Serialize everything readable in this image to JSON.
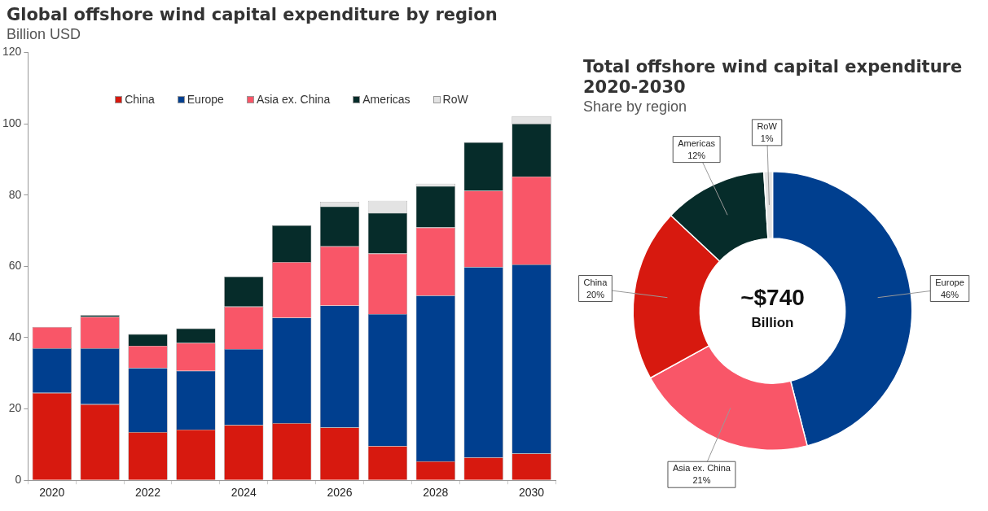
{
  "chart_data": [
    {
      "type": "bar",
      "title": "Global offshore wind capital expenditure by region",
      "subtitle": "Billion USD",
      "stacked": true,
      "legend": "top",
      "grid": false,
      "categories": [
        "2020",
        null,
        "2022",
        null,
        "2024",
        null,
        "2026",
        null,
        "2028",
        null,
        "2030"
      ],
      "ylim": [
        0,
        120
      ],
      "yticks": [
        0,
        20,
        40,
        60,
        80,
        100,
        120
      ],
      "series": [
        {
          "name": "China",
          "color": "#d7190f",
          "values": [
            24.5,
            21.3,
            13.5,
            14.2,
            15.5,
            16,
            14.8,
            9.6,
            5.3,
            6.4,
            7.5
          ]
        },
        {
          "name": "Europe",
          "color": "#003f8f",
          "values": [
            12.5,
            15.7,
            18,
            16.5,
            21.3,
            29.6,
            34.2,
            37,
            46.5,
            53.4,
            53
          ]
        },
        {
          "name": "Asia ex. China",
          "color": "#f95668",
          "values": [
            6,
            8.8,
            6.2,
            7.8,
            11.9,
            15.6,
            16.6,
            17,
            19.1,
            21.4,
            24.7
          ]
        },
        {
          "name": "Americas",
          "color": "#062c2a",
          "values": [
            null,
            0.5,
            3.3,
            4.1,
            8.4,
            10.3,
            11.2,
            11.4,
            11.6,
            13.6,
            14.8
          ]
        },
        {
          "name": "RoW",
          "color": "#e3e3e3",
          "values": [
            0,
            0,
            0,
            0,
            0,
            null,
            1.3,
            3.4,
            0.7,
            null,
            2.1
          ]
        }
      ]
    },
    {
      "type": "donut",
      "title": "Total offshore wind capital expenditure 2020-2030",
      "subtitle": "Share by region",
      "legend": false,
      "categories": [
        "Europe",
        "Asia ex. China",
        "China",
        "Americas",
        "RoW"
      ],
      "values": [
        46,
        21,
        20,
        12,
        1
      ],
      "value_labels": [
        "46%",
        "21%",
        "20%",
        "12%",
        "1%"
      ],
      "colors": [
        "#003f8f",
        "#f95668",
        "#d7190f",
        "#062c2a",
        "#e3e3e3"
      ],
      "annotations": [
        "~$740",
        "Billion"
      ]
    }
  ]
}
